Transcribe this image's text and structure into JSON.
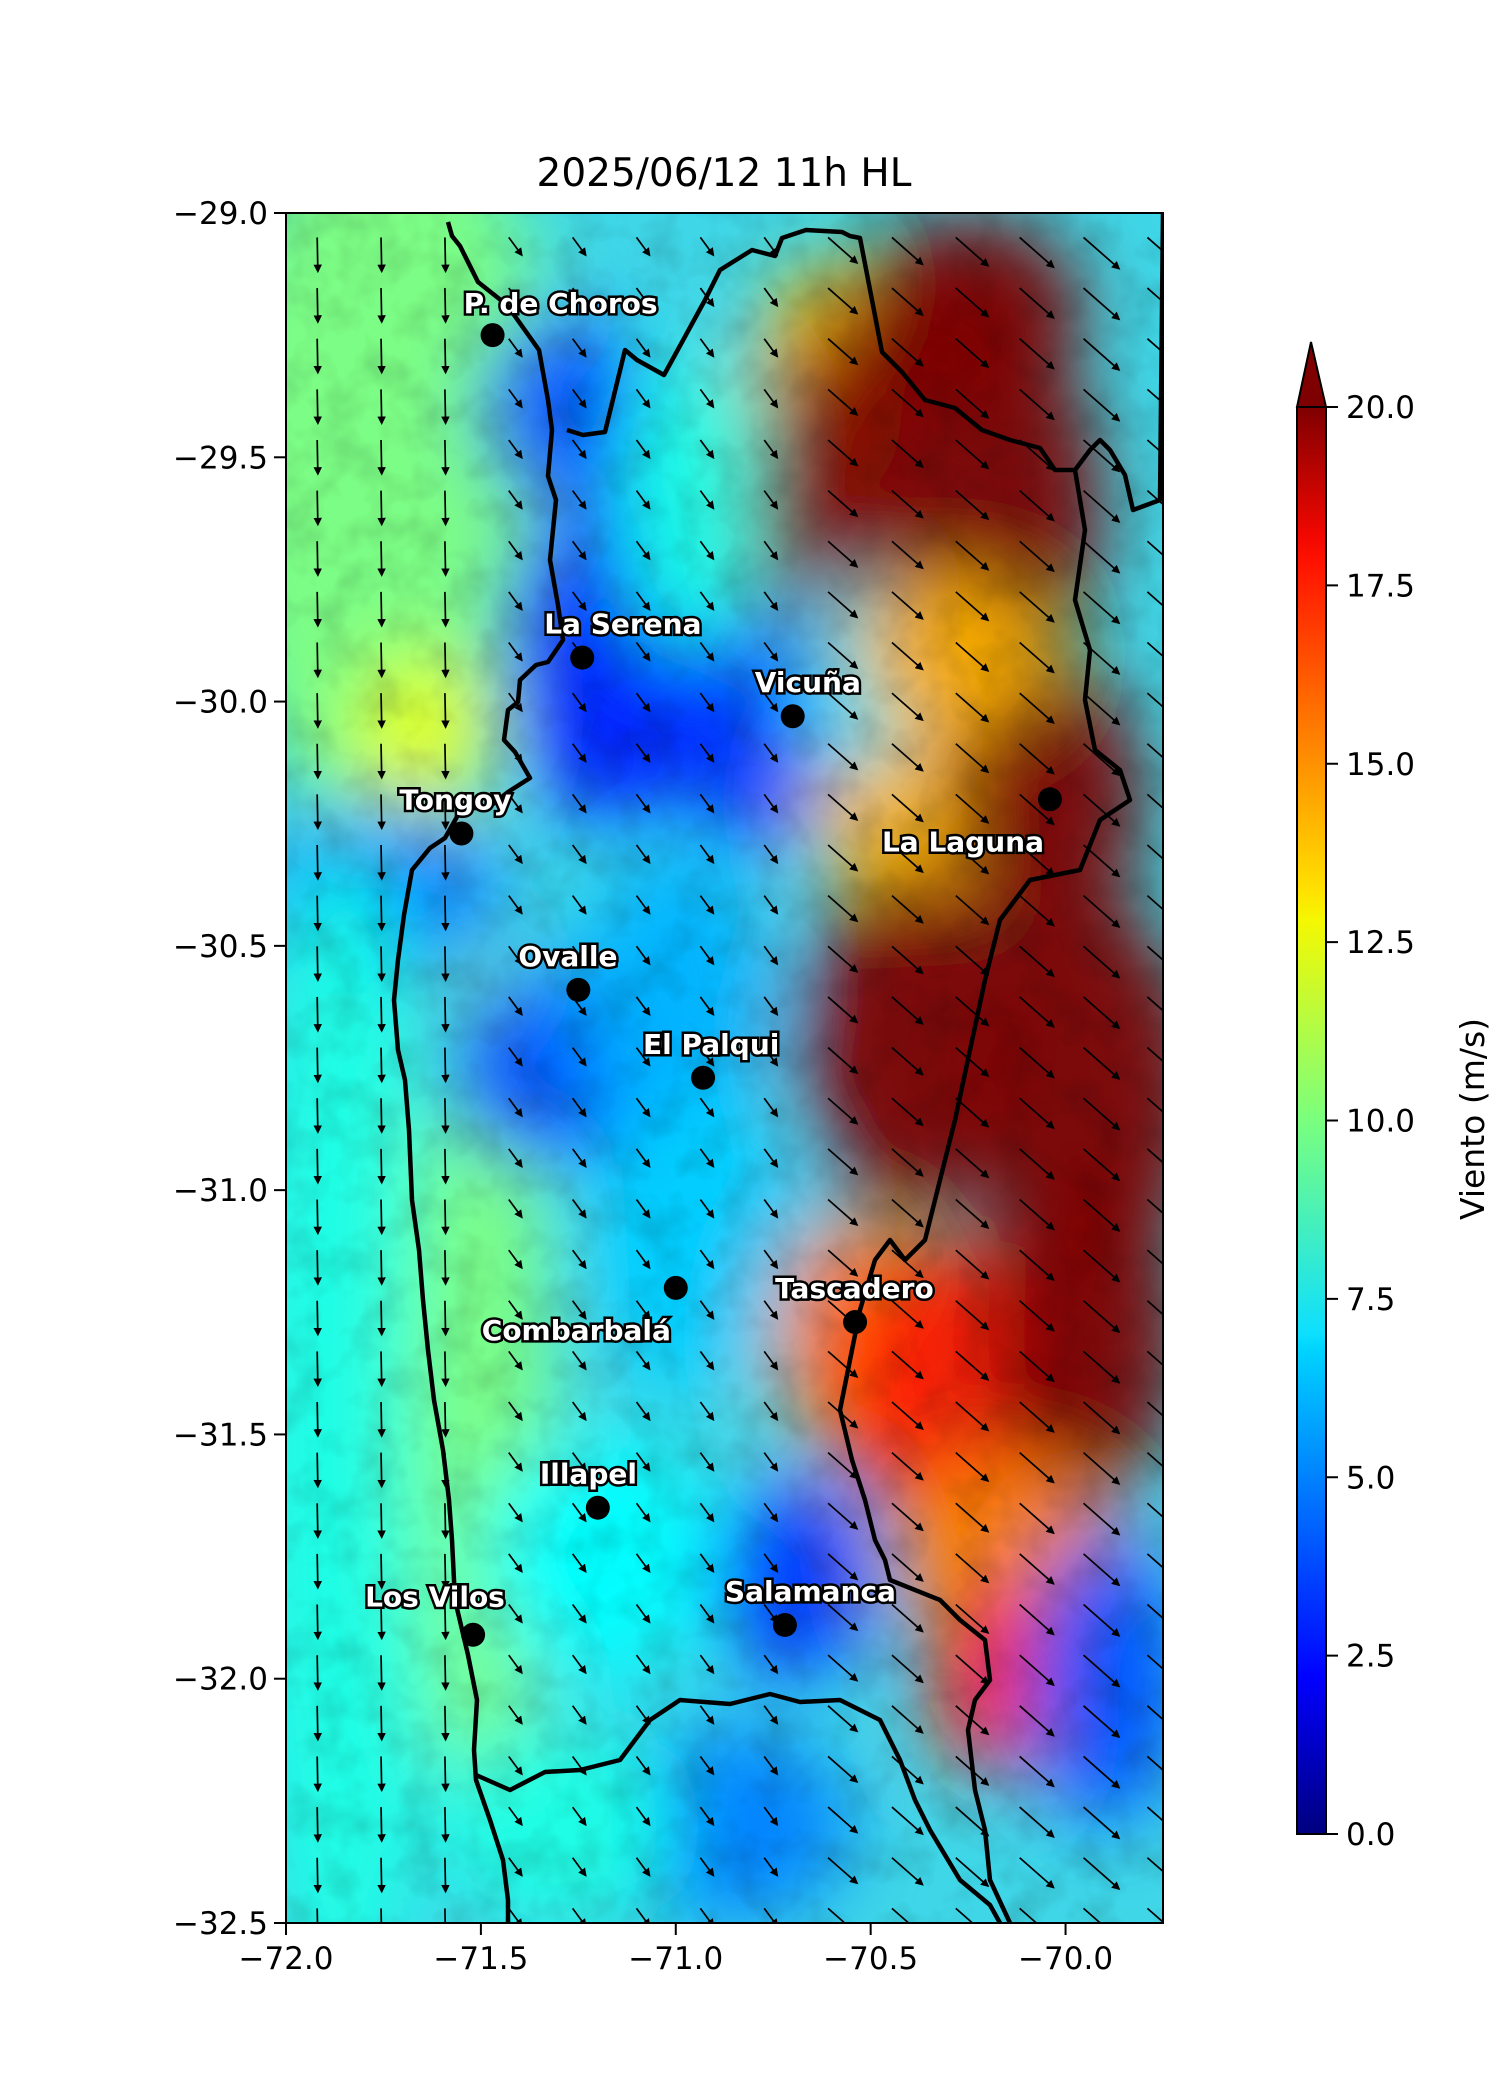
{
  "map": {
    "title": "2025/06/12 11h HL",
    "lon_range": [
      -72.0,
      -69.75
    ],
    "lat_range": [
      -32.5,
      -29.0
    ],
    "x_ticks": [
      -72.0,
      -71.5,
      -71.0,
      -70.5,
      -70.0
    ],
    "y_ticks": [
      -29.0,
      -29.5,
      -30.0,
      -30.5,
      -31.0,
      -31.5,
      -32.0,
      -32.5
    ],
    "x_tick_labels": [
      "−72.0",
      "−71.5",
      "−71.0",
      "−70.5",
      "−70.0"
    ],
    "y_tick_labels": [
      "−29.0",
      "−29.5",
      "−30.0",
      "−30.5",
      "−31.0",
      "−31.5",
      "−32.0",
      "−32.5"
    ],
    "colormap": "jet",
    "field_description": "wind speed contours with wind vectors"
  },
  "colorbar": {
    "label": "Viento (m/s)",
    "range": [
      0.0,
      20.0
    ],
    "extend": "max",
    "ticks": [
      0.0,
      2.5,
      5.0,
      7.5,
      10.0,
      12.5,
      15.0,
      17.5,
      20.0
    ],
    "tick_labels": [
      "0.0",
      "2.5",
      "5.0",
      "7.5",
      "10.0",
      "12.5",
      "15.0",
      "17.5",
      "20.0"
    ]
  },
  "cities": [
    {
      "name": "P. de Choros",
      "lon": -71.47,
      "lat": -29.25
    },
    {
      "name": "La Serena",
      "lon": -71.24,
      "lat": -29.91
    },
    {
      "name": "Vicuña",
      "lon": -70.7,
      "lat": -30.03
    },
    {
      "name": "Tongoy",
      "lon": -71.55,
      "lat": -30.27
    },
    {
      "name": "La Laguna",
      "lon": -70.04,
      "lat": -30.2
    },
    {
      "name": "Ovalle",
      "lon": -71.25,
      "lat": -30.59
    },
    {
      "name": "El Palqui",
      "lon": -70.93,
      "lat": -30.77
    },
    {
      "name": "Combarbalá",
      "lon": -71.0,
      "lat": -31.2
    },
    {
      "name": "Tascadero",
      "lon": -70.54,
      "lat": -31.27
    },
    {
      "name": "Illapel",
      "lon": -71.2,
      "lat": -31.65
    },
    {
      "name": "Los Vilos",
      "lon": -71.52,
      "lat": -31.91
    },
    {
      "name": "Salamanca",
      "lon": -70.72,
      "lat": -31.89
    }
  ]
}
